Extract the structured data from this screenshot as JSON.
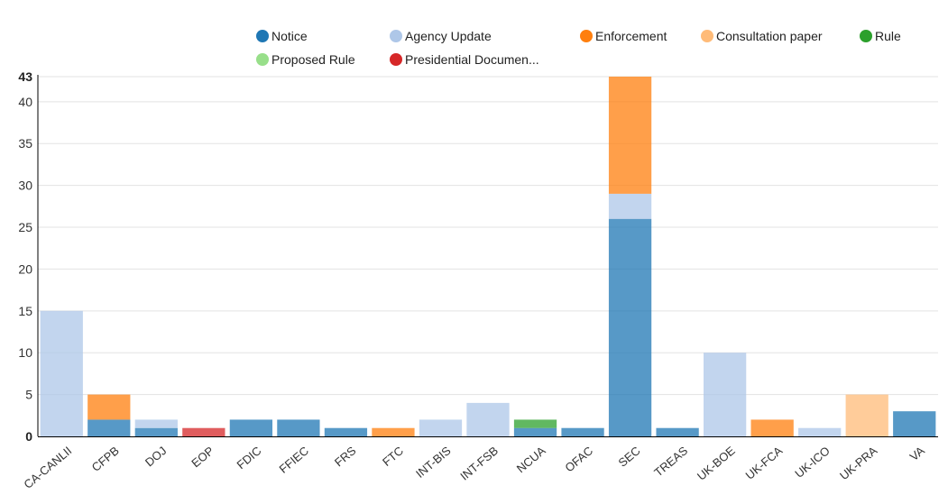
{
  "chart_data": {
    "type": "bar",
    "stacked": true,
    "categories": [
      "CA-CANLII",
      "CFPB",
      "DOJ",
      "EOP",
      "FDIC",
      "FFIEC",
      "FRS",
      "FTC",
      "INT-BIS",
      "INT-FSB",
      "NCUA",
      "OFAC",
      "SEC",
      "TREAS",
      "UK-BOE",
      "UK-FCA",
      "UK-ICO",
      "UK-PRA",
      "VA"
    ],
    "series": [
      {
        "name": "Notice",
        "color": "#1f77b4",
        "values": [
          0,
          2,
          1,
          0,
          2,
          2,
          1,
          0,
          0,
          0,
          1,
          1,
          26,
          1,
          0,
          0,
          0,
          0,
          3
        ]
      },
      {
        "name": "Agency Update",
        "color": "#aec7e8",
        "values": [
          15,
          0,
          1,
          0,
          0,
          0,
          0,
          0,
          2,
          4,
          0,
          0,
          3,
          0,
          10,
          0,
          1,
          0,
          0
        ]
      },
      {
        "name": "Enforcement",
        "color": "#ff7f0e",
        "values": [
          0,
          3,
          0,
          0,
          0,
          0,
          0,
          1,
          0,
          0,
          0,
          0,
          14,
          0,
          0,
          2,
          0,
          0,
          0
        ]
      },
      {
        "name": "Consultation paper",
        "color": "#ffbb78",
        "values": [
          0,
          0,
          0,
          0,
          0,
          0,
          0,
          0,
          0,
          0,
          0,
          0,
          0,
          0,
          0,
          0,
          0,
          5,
          0
        ]
      },
      {
        "name": "Rule",
        "color": "#2ca02c",
        "values": [
          0,
          0,
          0,
          0,
          0,
          0,
          0,
          0,
          0,
          0,
          1,
          0,
          0,
          0,
          0,
          0,
          0,
          0,
          0
        ]
      },
      {
        "name": "Proposed Rule",
        "color": "#98df8a",
        "values": [
          0,
          0,
          0,
          0,
          0,
          0,
          0,
          0,
          0,
          0,
          0,
          0,
          0,
          0,
          0,
          0,
          0,
          0,
          0
        ]
      },
      {
        "name": "Presidential Documen...",
        "color": "#d62728",
        "values": [
          0,
          0,
          0,
          1,
          0,
          0,
          0,
          0,
          0,
          0,
          0,
          0,
          0,
          0,
          0,
          0,
          0,
          0,
          0
        ]
      }
    ],
    "y_ticks": [
      "0",
      "5",
      "10",
      "15",
      "20",
      "25",
      "30",
      "35",
      "40",
      "43"
    ],
    "ylim": [
      0,
      43
    ],
    "grid": true,
    "legend_position": "top"
  }
}
